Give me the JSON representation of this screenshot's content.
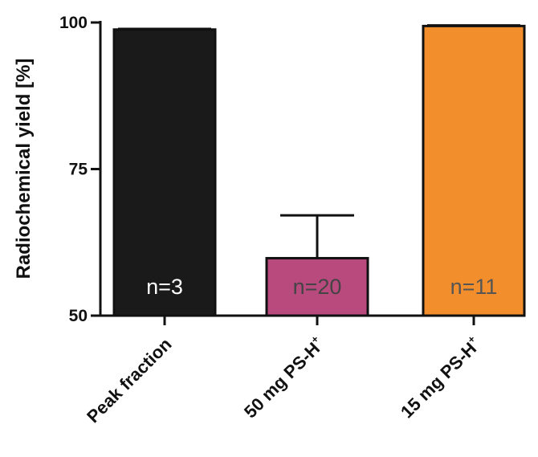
{
  "chart_data": {
    "type": "bar",
    "categories": [
      {
        "main": "Peak fraction",
        "sup": ""
      },
      {
        "main": "50 mg PS-H",
        "sup": "+"
      },
      {
        "main": "15 mg PS-H",
        "sup": "+"
      }
    ],
    "values": [
      98.8,
      59.8,
      99.4
    ],
    "errors": [
      0.1,
      7.3,
      0.1
    ],
    "n_labels": [
      "n=3",
      "n=20",
      "n=11"
    ],
    "colors": [
      "#1a1a1a",
      "#b94a7e",
      "#f28e2b"
    ],
    "n_label_colors": [
      "#ffffff",
      "#444444",
      "#555555"
    ],
    "ylabel": "Radiochemical yield [%]",
    "ylim": [
      50,
      100
    ],
    "yticks": [
      50,
      75,
      100
    ]
  }
}
